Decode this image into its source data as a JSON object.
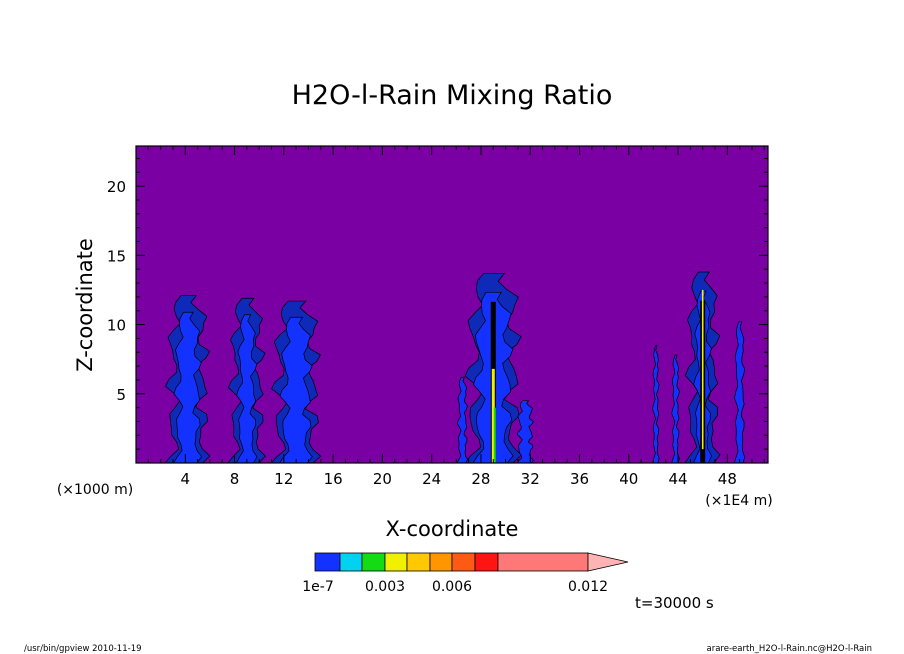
{
  "chart_data": {
    "type": "heatmap",
    "title": "H2O-l-Rain Mixing Ratio",
    "xlabel": "X-coordinate",
    "ylabel": "Z-coordinate",
    "x_unit_left": "(×1000 m)",
    "x_unit_right": "(×1E4 m)",
    "x_ticks": [
      "4",
      "8",
      "12",
      "16",
      "20",
      "24",
      "28",
      "32",
      "36",
      "40",
      "44",
      "48"
    ],
    "y_ticks": [
      "5",
      "10",
      "15",
      "20"
    ],
    "xlim": [
      0,
      51.3
    ],
    "ylim": [
      0,
      22.9
    ],
    "time_label": "t=30000 s",
    "background_color": "#7a00a4",
    "colorbar": {
      "levels": [
        "1e-7",
        "0.003",
        "0.006",
        "0.012"
      ],
      "colors": [
        "#1432ff",
        "#00d2f0",
        "#14dc14",
        "#f0f000",
        "#ffc800",
        "#ff9600",
        "#ff5a14",
        "#ff1414",
        "#ff7878",
        "#ffb4b4"
      ]
    },
    "cells": [
      {
        "x": 4.2,
        "zmax": 12.1
      },
      {
        "x": 9.0,
        "zmax": 11.9
      },
      {
        "x": 13.0,
        "zmax": 11.7
      },
      {
        "x": 29.0,
        "zmax": 13.7
      },
      {
        "x": 46.0,
        "zmax": 13.8
      }
    ]
  },
  "footer": {
    "left": "/usr/bin/gpview   2010-11-19",
    "right": "arare-earth_H2O-l-Rain.nc@H2O-l-Rain"
  }
}
